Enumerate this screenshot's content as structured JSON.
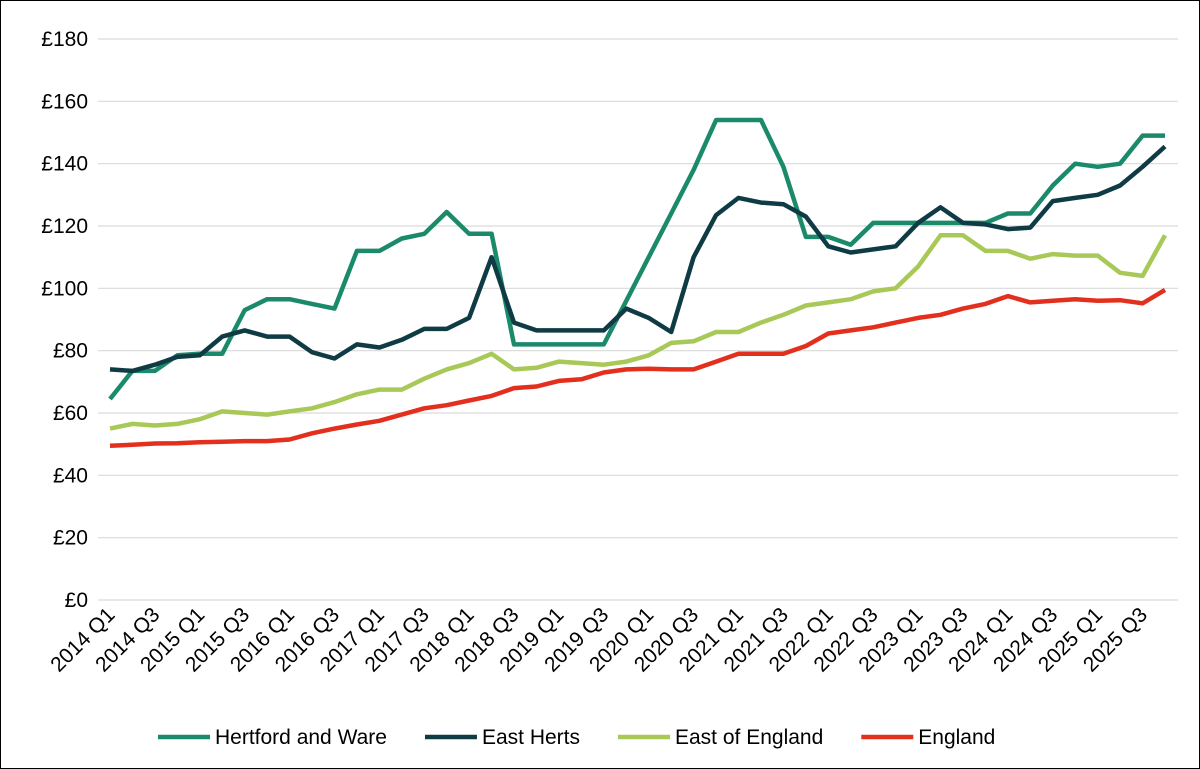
{
  "chart_data": {
    "type": "line",
    "categories": [
      "2014 Q1",
      null,
      "2014 Q3",
      null,
      "2015 Q1",
      null,
      "2015 Q3",
      null,
      "2016 Q1",
      null,
      "2016 Q3",
      null,
      "2017 Q1",
      null,
      "2017 Q3",
      null,
      "2018 Q1",
      null,
      "2018 Q3",
      null,
      "2019 Q1",
      null,
      "2019 Q3",
      null,
      "2020 Q1",
      null,
      "2020 Q3",
      null,
      "2021 Q1",
      null,
      "2021 Q3",
      null,
      "2022 Q1",
      null,
      "2022 Q3",
      null,
      "2023 Q1",
      null,
      "2023 Q3",
      null,
      "2024 Q1",
      null,
      "2024 Q3",
      null,
      "2025 Q1",
      null,
      "2025 Q3",
      null
    ],
    "series": [
      {
        "name": "Hertford and Ware",
        "color": "#1b8a6b",
        "values": [
          64.5,
          73.5,
          73.5,
          78.5,
          79,
          79,
          93,
          96.5,
          96.5,
          95,
          93.5,
          112,
          112,
          116,
          117.5,
          124.5,
          117.5,
          117.5,
          82,
          82,
          82,
          82,
          82,
          96,
          110,
          124,
          138,
          154,
          154,
          154,
          139,
          116.5,
          116.5,
          114,
          121,
          121,
          121,
          121,
          121,
          121,
          124,
          124,
          133,
          140,
          139,
          140,
          149,
          149
        ]
      },
      {
        "name": "East Herts",
        "color": "#0f3b45",
        "values": [
          74,
          73.5,
          75.5,
          78,
          78.5,
          84.5,
          86.5,
          84.5,
          84.5,
          79.5,
          77.5,
          82,
          81,
          83.5,
          87,
          87,
          90.5,
          110,
          89,
          86.5,
          86.5,
          86.5,
          86.5,
          93.5,
          90.5,
          86,
          110,
          123.5,
          129,
          127.5,
          127,
          123,
          113.5,
          111.5,
          112.5,
          113.5,
          121,
          126,
          121,
          120.5,
          119,
          119.5,
          128,
          129,
          130,
          133,
          139,
          145.5
        ]
      },
      {
        "name": "East of England",
        "color": "#a8c957",
        "values": [
          55,
          56.5,
          56,
          56.5,
          58,
          60.5,
          60,
          59.5,
          60.5,
          61.5,
          63.5,
          66,
          67.5,
          67.5,
          71,
          74,
          76,
          79,
          74,
          74.5,
          76.5,
          76,
          75.5,
          76.5,
          78.5,
          82.5,
          83,
          86,
          86,
          89,
          91.5,
          94.5,
          95.5,
          96.5,
          99,
          100,
          107,
          117,
          117,
          112,
          112,
          109.5,
          111,
          110.5,
          110.5,
          105,
          104,
          117
        ]
      },
      {
        "name": "England",
        "color": "#e3301e",
        "values": [
          49.5,
          49.8,
          50.2,
          50.3,
          50.6,
          50.8,
          51,
          51,
          51.5,
          53.5,
          55,
          56.3,
          57.5,
          59.5,
          61.5,
          62.5,
          64,
          65.5,
          68,
          68.5,
          70.3,
          70.8,
          73,
          74,
          74.2,
          74,
          74,
          76.5,
          79,
          79,
          79,
          81.5,
          85.5,
          86.5,
          87.5,
          89,
          90.5,
          91.5,
          93.5,
          95,
          97.5,
          95.5,
          96,
          96.5,
          96,
          96.2,
          95.2,
          99.5
        ]
      }
    ],
    "ylim": [
      0,
      180
    ],
    "yticks": [
      {
        "value": 0,
        "label": "£0"
      },
      {
        "value": 20,
        "label": "£20"
      },
      {
        "value": 40,
        "label": "£40"
      },
      {
        "value": 60,
        "label": "£60"
      },
      {
        "value": 80,
        "label": "£80"
      },
      {
        "value": 100,
        "label": "£100"
      },
      {
        "value": 120,
        "label": "£120"
      },
      {
        "value": 140,
        "label": "£140"
      },
      {
        "value": 160,
        "label": "£160"
      },
      {
        "value": 180,
        "label": "£180"
      }
    ],
    "grid": true,
    "legend": "bottom"
  }
}
